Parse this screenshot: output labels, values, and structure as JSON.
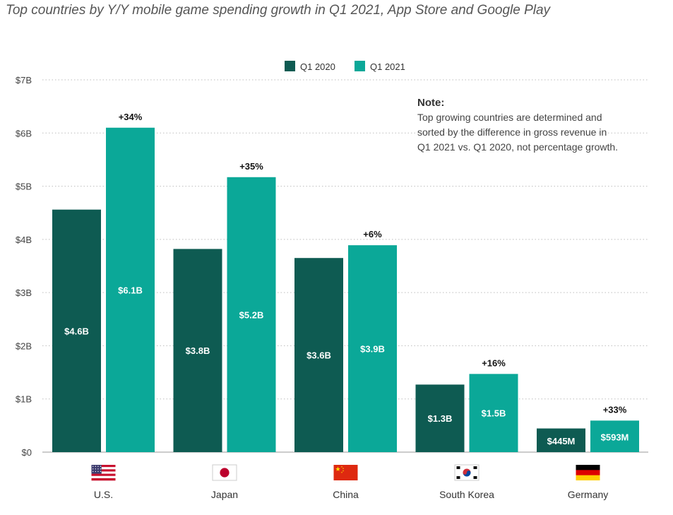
{
  "title": "Top countries by Y/Y mobile game spending growth in Q1 2021, App Store and Google Play",
  "note": {
    "heading": "Note:",
    "text": "Top growing countries are determined and sorted by the difference in gross revenue in Q1 2021 vs. Q1 2020, not percentage growth."
  },
  "colors": {
    "q1_2020": "#0e5b52",
    "q1_2021": "#0ba898",
    "grid": "#bdbdbd"
  },
  "chart_data": {
    "type": "bar",
    "title": "Top countries by Y/Y mobile game spending growth in Q1 2021, App Store and Google Play",
    "xlabel": "",
    "ylabel": "",
    "ylim": [
      0,
      7
    ],
    "yticks": [
      {
        "value": 0,
        "label": "$0"
      },
      {
        "value": 1,
        "label": "$1B"
      },
      {
        "value": 2,
        "label": "$2B"
      },
      {
        "value": 3,
        "label": "$3B"
      },
      {
        "value": 4,
        "label": "$4B"
      },
      {
        "value": 5,
        "label": "$5B"
      },
      {
        "value": 6,
        "label": "$6B"
      },
      {
        "value": 7,
        "label": "$7B"
      }
    ],
    "grid": true,
    "legend": "top-center",
    "categories": [
      "U.S.",
      "Japan",
      "China",
      "South Korea",
      "Germany"
    ],
    "flags": [
      "us-flag-icon",
      "japan-flag-icon",
      "china-flag-icon",
      "south-korea-flag-icon",
      "germany-flag-icon"
    ],
    "series": [
      {
        "name": "Q1 2020",
        "values": [
          4.56,
          3.82,
          3.65,
          1.27,
          0.445
        ],
        "labels": [
          "$4.6B",
          "$3.8B",
          "$3.6B",
          "$1.3B",
          "$445M"
        ]
      },
      {
        "name": "Q1 2021",
        "values": [
          6.1,
          5.17,
          3.89,
          1.47,
          0.593
        ],
        "labels": [
          "$6.1B",
          "$5.2B",
          "$3.9B",
          "$1.5B",
          "$593M"
        ]
      }
    ],
    "growth_labels": [
      "+34%",
      "+35%",
      "+6%",
      "+16%",
      "+33%"
    ]
  }
}
